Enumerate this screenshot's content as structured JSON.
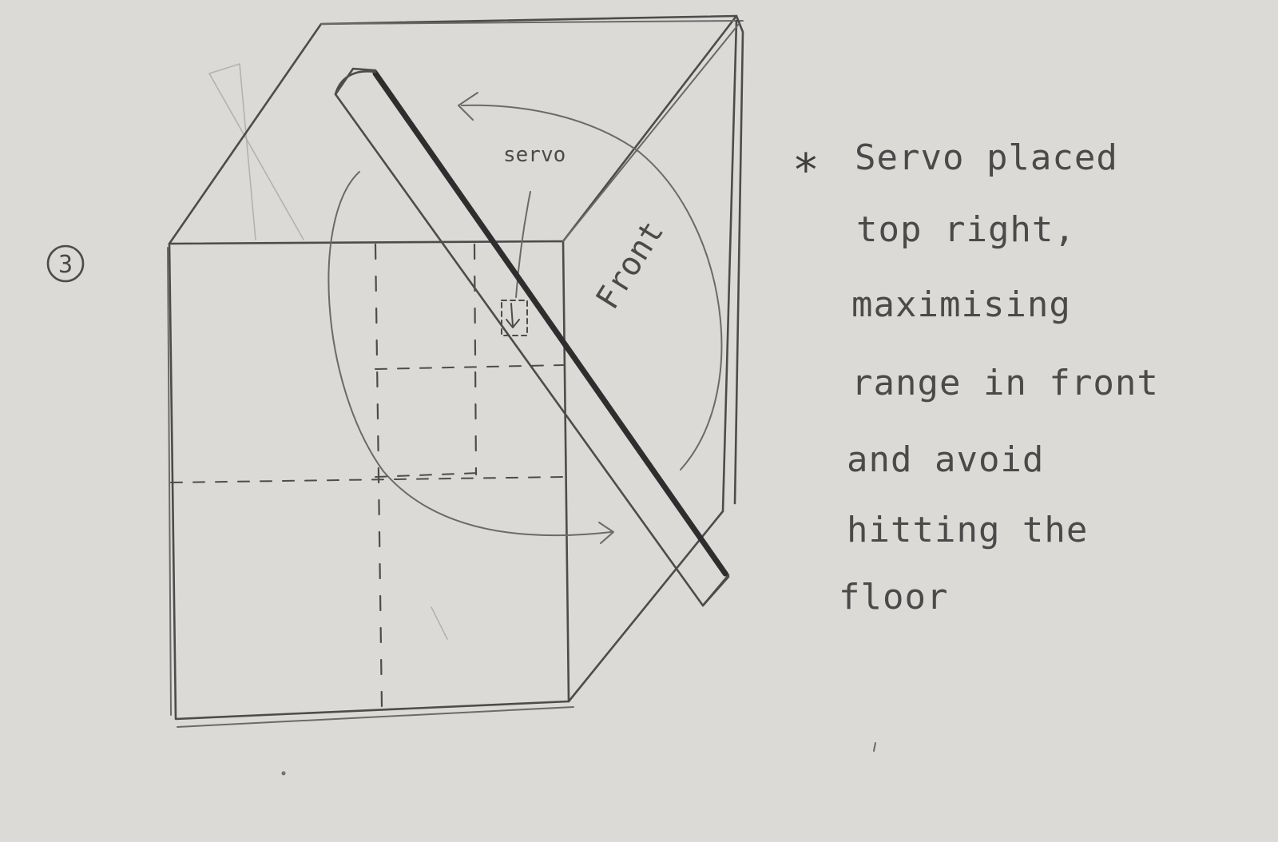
{
  "sketch": {
    "step_number": "3",
    "servo_label": "servo",
    "front_label": "Front",
    "note_bullet": "*",
    "note_lines": [
      "Servo placed",
      "top right,",
      "maximising",
      "range in front",
      "and avoid",
      "hitting the",
      "floor"
    ]
  },
  "colors": {
    "paper": "#dcdad6",
    "pencil": "#4c4c4c"
  }
}
